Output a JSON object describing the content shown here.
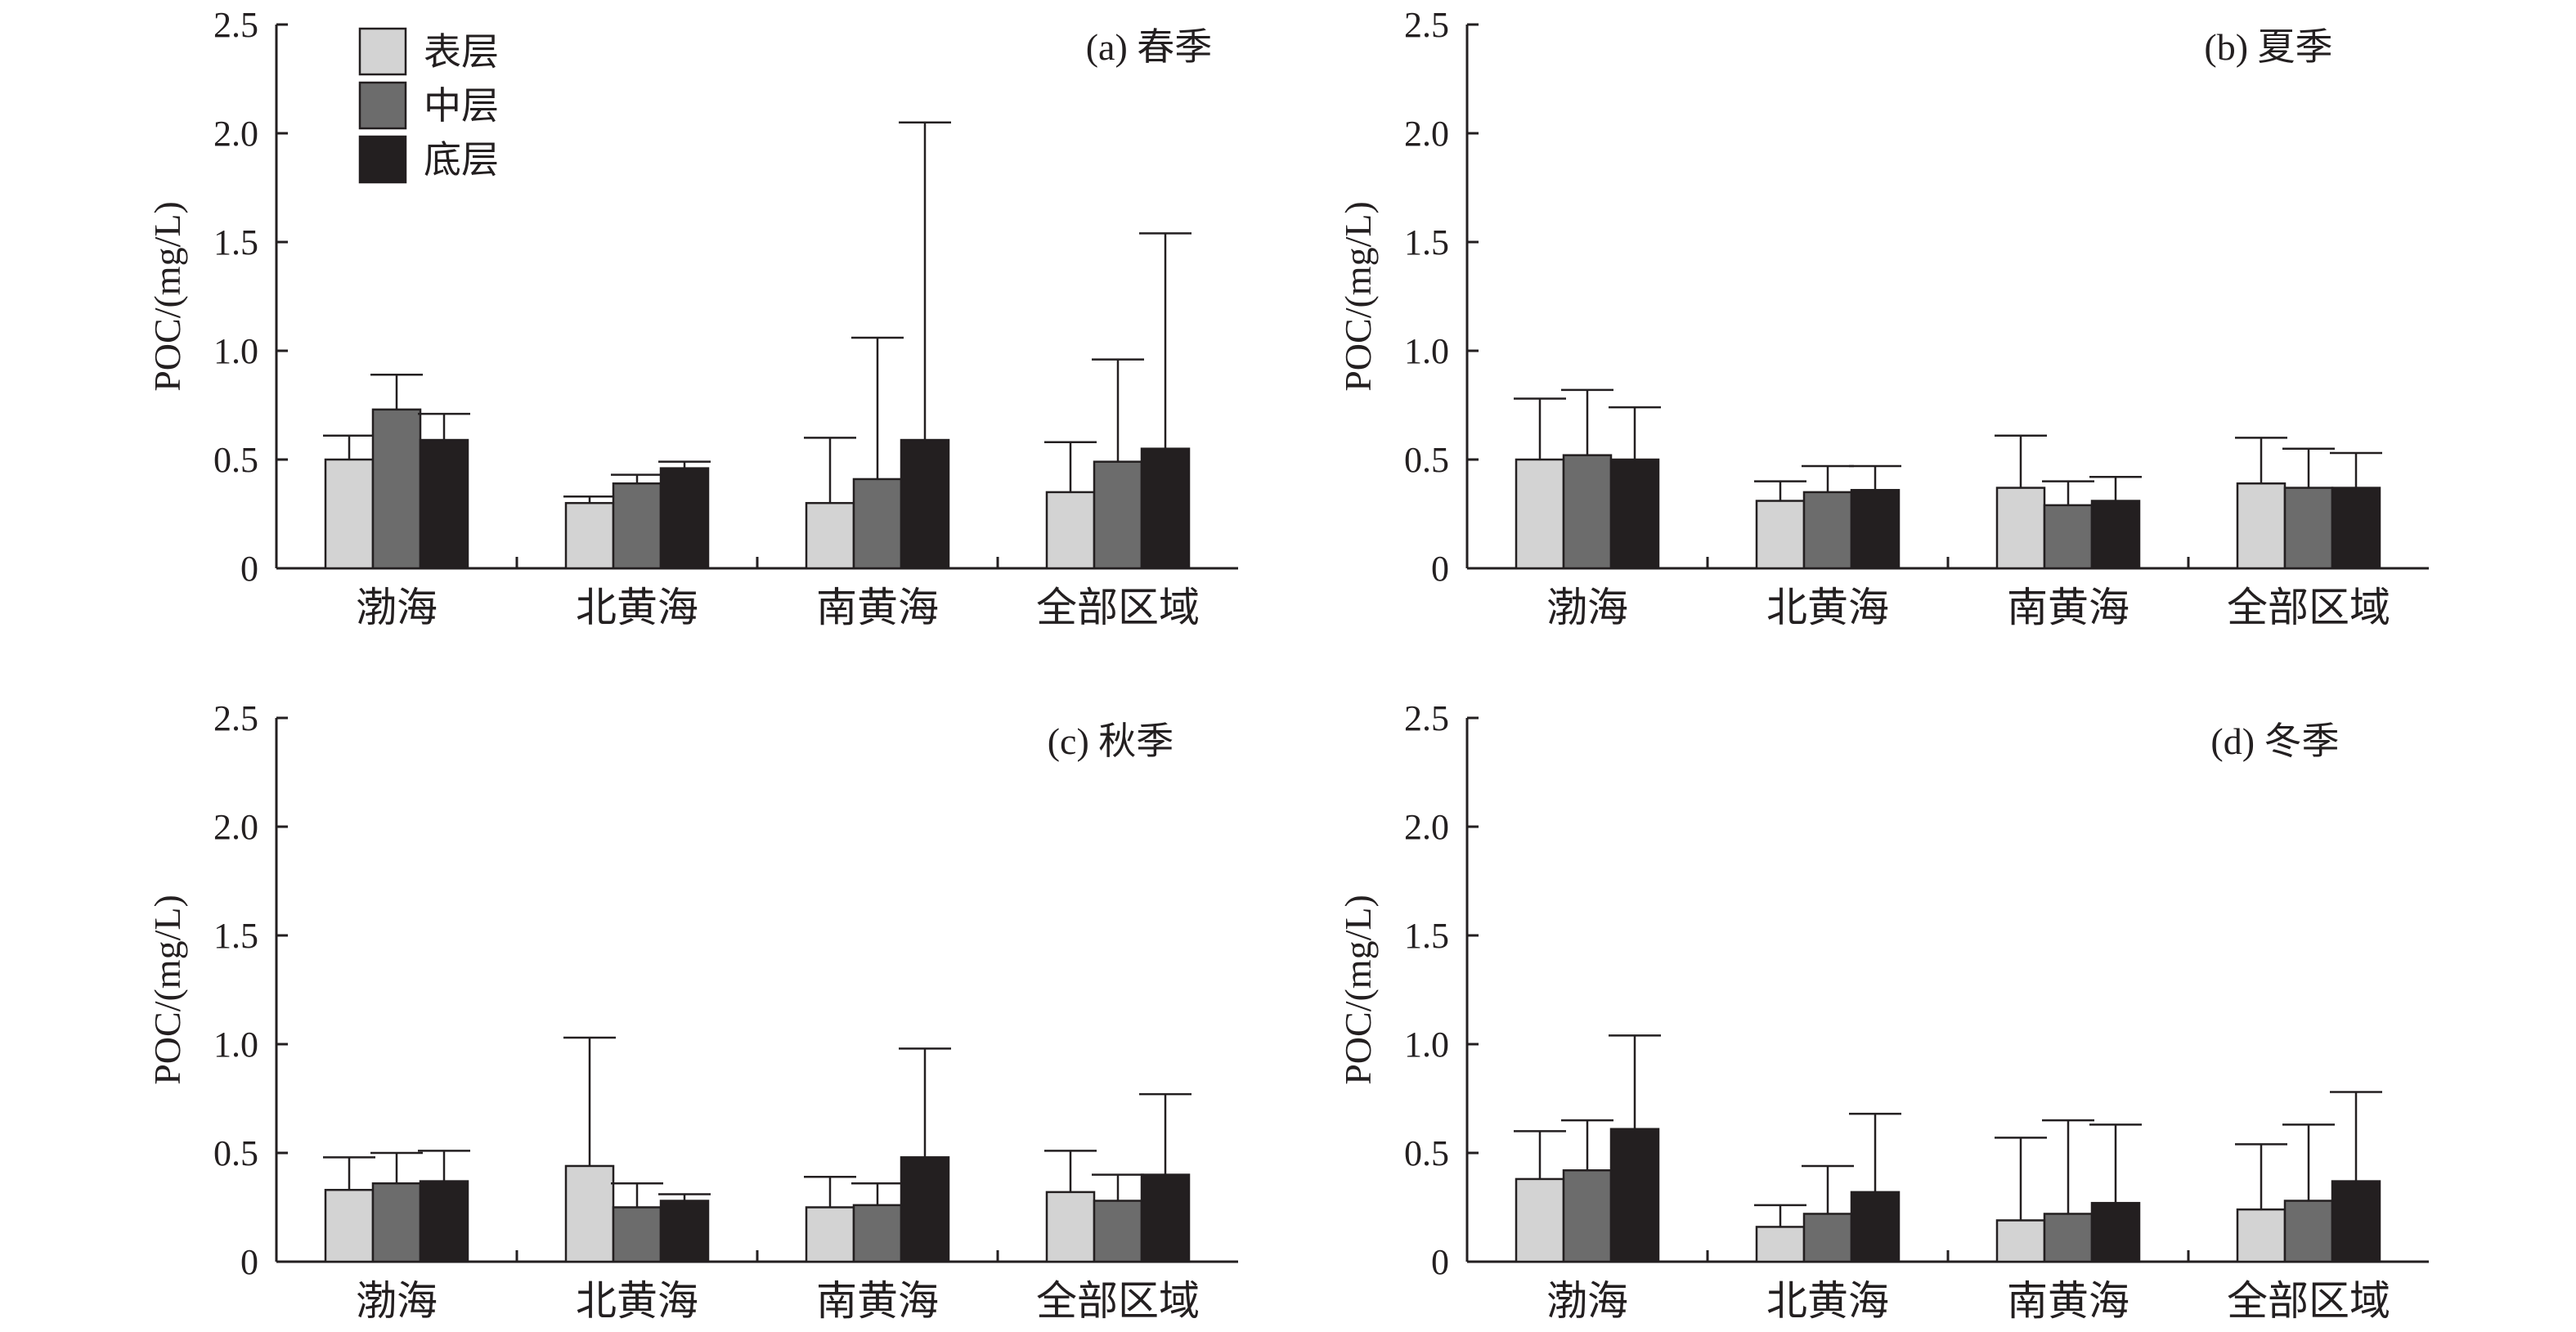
{
  "colors": {
    "series": [
      "#d3d3d3",
      "#6c6c6c",
      "#231f20"
    ],
    "bar_stroke": "#231f20",
    "axis": "#231f20",
    "background": "#ffffff"
  },
  "legend": {
    "placement": "top-left of panel (a)",
    "entries": [
      "表层",
      "中层",
      "底层"
    ]
  },
  "chart_data": [
    {
      "type": "bar",
      "panel": "a",
      "title": "(a) 春季",
      "ylabel": "POC/(mg/L)",
      "xlabel": "",
      "ylim": [
        0,
        2.5
      ],
      "yticks": [
        "0",
        "0.5",
        "1.0",
        "1.5",
        "2.0",
        "2.5"
      ],
      "grid": false,
      "categories": [
        "渤海",
        "北黄海",
        "南黄海",
        "全部区域"
      ],
      "series": [
        {
          "name": "表层",
          "values": [
            0.5,
            0.3,
            0.3,
            0.35
          ],
          "error": [
            0.11,
            0.03,
            0.3,
            0.23
          ]
        },
        {
          "name": "中层",
          "values": [
            0.73,
            0.39,
            0.41,
            0.49
          ],
          "error": [
            0.16,
            0.04,
            0.65,
            0.47
          ]
        },
        {
          "name": "底层",
          "values": [
            0.59,
            0.46,
            0.59,
            0.55
          ],
          "error": [
            0.12,
            0.03,
            1.46,
            0.99
          ]
        }
      ]
    },
    {
      "type": "bar",
      "panel": "b",
      "title": "(b) 夏季",
      "ylabel": "POC/(mg/L)",
      "xlabel": "",
      "ylim": [
        0,
        2.5
      ],
      "yticks": [
        "0",
        "0.5",
        "1.0",
        "1.5",
        "2.0",
        "2.5"
      ],
      "grid": false,
      "categories": [
        "渤海",
        "北黄海",
        "南黄海",
        "全部区域"
      ],
      "series": [
        {
          "name": "表层",
          "values": [
            0.5,
            0.31,
            0.37,
            0.39
          ],
          "error": [
            0.28,
            0.09,
            0.24,
            0.21
          ]
        },
        {
          "name": "中层",
          "values": [
            0.52,
            0.35,
            0.29,
            0.37
          ],
          "error": [
            0.3,
            0.12,
            0.11,
            0.18
          ]
        },
        {
          "name": "底层",
          "values": [
            0.5,
            0.36,
            0.31,
            0.37
          ],
          "error": [
            0.24,
            0.11,
            0.11,
            0.16
          ]
        }
      ]
    },
    {
      "type": "bar",
      "panel": "c",
      "title": "(c) 秋季",
      "ylabel": "POC/(mg/L)",
      "xlabel": "",
      "ylim": [
        0,
        2.5
      ],
      "yticks": [
        "0",
        "0.5",
        "1.0",
        "1.5",
        "2.0",
        "2.5"
      ],
      "grid": false,
      "categories": [
        "渤海",
        "北黄海",
        "南黄海",
        "全部区域"
      ],
      "series": [
        {
          "name": "表层",
          "values": [
            0.33,
            0.44,
            0.25,
            0.32
          ],
          "error": [
            0.15,
            0.59,
            0.14,
            0.19
          ]
        },
        {
          "name": "中层",
          "values": [
            0.36,
            0.25,
            0.26,
            0.28
          ],
          "error": [
            0.14,
            0.11,
            0.1,
            0.12
          ]
        },
        {
          "name": "底层",
          "values": [
            0.37,
            0.28,
            0.48,
            0.4
          ],
          "error": [
            0.14,
            0.03,
            0.5,
            0.37
          ]
        }
      ]
    },
    {
      "type": "bar",
      "panel": "d",
      "title": "(d) 冬季",
      "ylabel": "POC/(mg/L)",
      "xlabel": "",
      "ylim": [
        0,
        2.5
      ],
      "yticks": [
        "0",
        "0.5",
        "1.0",
        "1.5",
        "2.0",
        "2.5"
      ],
      "grid": false,
      "categories": [
        "渤海",
        "北黄海",
        "南黄海",
        "全部区域"
      ],
      "series": [
        {
          "name": "表层",
          "values": [
            0.38,
            0.16,
            0.19,
            0.24
          ],
          "error": [
            0.22,
            0.1,
            0.38,
            0.3
          ]
        },
        {
          "name": "中层",
          "values": [
            0.42,
            0.22,
            0.22,
            0.28
          ],
          "error": [
            0.23,
            0.22,
            0.43,
            0.35
          ]
        },
        {
          "name": "底层",
          "values": [
            0.61,
            0.32,
            0.27,
            0.37
          ],
          "error": [
            0.43,
            0.36,
            0.36,
            0.41
          ]
        }
      ]
    }
  ]
}
